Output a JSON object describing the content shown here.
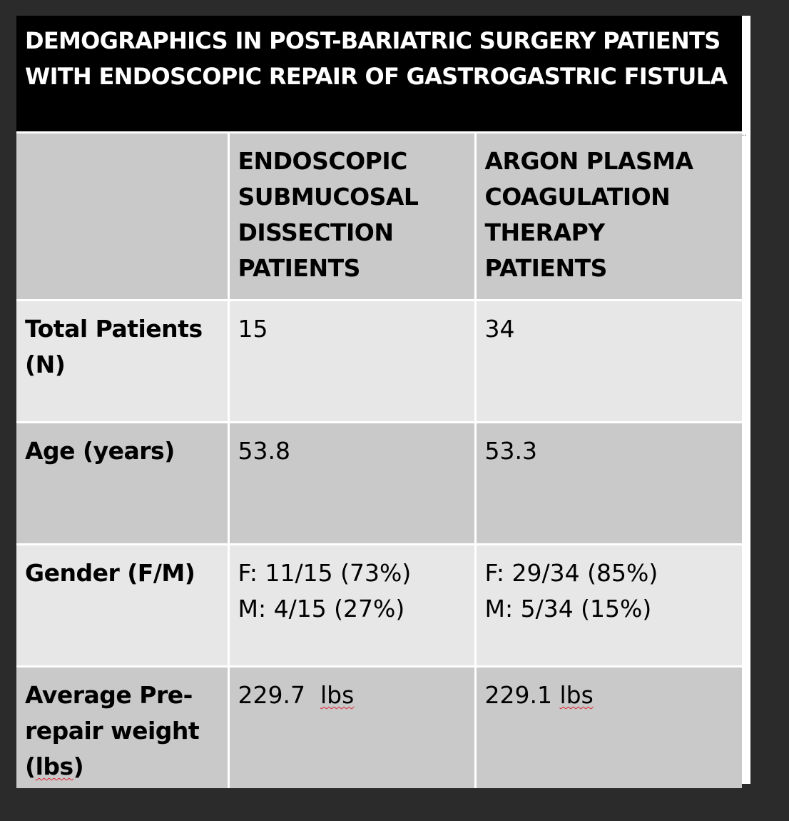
{
  "title": "DEMOGRAPHICS IN POST-BARIATRIC SURGERY PATIENTS\nWITH ENDOSCOPIC REPAIR OF GASTROGASTRIC FISTULA",
  "table": {
    "headers": [
      "",
      "ENDOSCOPIC\nSUBMUCOSAL\nDISSECTION\nPATIENTS",
      "ARGON PLASMA\nCOAGULATION\nTHERAPY PATIENTS"
    ],
    "rows": [
      {
        "label": "Total Patients\n(N)",
        "esd": "15",
        "apc": "34"
      },
      {
        "label": "Age (years)",
        "esd": "53.8",
        "apc": "53.3"
      },
      {
        "label": "Gender (F/M)",
        "esd": "F: 11/15 (73%)\nM: 4/15 (27%)",
        "apc": "F: 29/34 (85%)\nM: 5/34 (15%)"
      },
      {
        "label_prefix": "Average Pre-\nrepair weight\n(",
        "label_unit": "lbs",
        "label_suffix": ")",
        "esd_value": "229.7  ",
        "esd_unit": "lbs",
        "apc_value": "229.1 ",
        "apc_unit": "lbs"
      }
    ]
  },
  "ellipsis": "··"
}
